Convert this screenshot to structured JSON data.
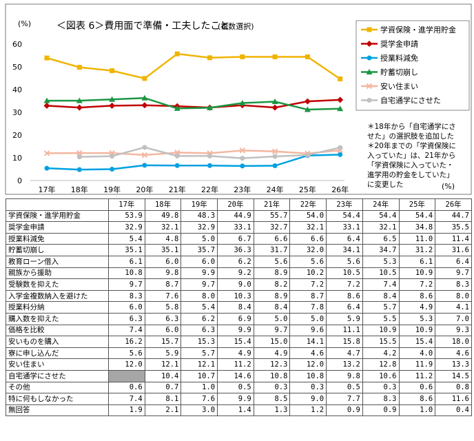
{
  "chart_data": {
    "type": "line",
    "title": "＜図表 6＞費用面で準備・工夫したこと",
    "subtitle": "(複数選択)",
    "y_unit": "(%)",
    "x_unit": "(%)",
    "ylim": [
      0,
      60
    ],
    "yticks": [
      0,
      10,
      20,
      30,
      40,
      50,
      60
    ],
    "categories": [
      "17年",
      "18年",
      "19年",
      "20年",
      "21年",
      "22年",
      "23年",
      "24年",
      "25年",
      "26年"
    ],
    "legend_position": "top-right",
    "series": [
      {
        "name": "学資保険・進学用貯金",
        "color": "#f0b400",
        "marker": "square",
        "values": [
          53.9,
          49.8,
          48.3,
          44.9,
          55.7,
          54.0,
          54.4,
          54.4,
          54.4,
          44.7
        ]
      },
      {
        "name": "奨学金申請",
        "color": "#c00000",
        "marker": "diamond",
        "values": [
          32.9,
          32.1,
          32.9,
          33.1,
          32.7,
          32.1,
          33.1,
          32.1,
          34.8,
          35.5
        ]
      },
      {
        "name": "授業料減免",
        "color": "#00a0e0",
        "marker": "circle",
        "values": [
          5.4,
          4.8,
          5.0,
          6.7,
          6.6,
          6.6,
          6.4,
          6.5,
          11.0,
          11.4
        ]
      },
      {
        "name": "貯蓄切崩し",
        "color": "#1a9641",
        "marker": "triangle",
        "values": [
          35.1,
          35.1,
          35.7,
          36.3,
          31.7,
          32.0,
          34.1,
          34.7,
          31.2,
          31.6
        ]
      },
      {
        "name": "安い住まい",
        "color": "#f4b6a0",
        "marker": "x",
        "values": [
          12.0,
          12.1,
          12.1,
          11.2,
          12.3,
          12.0,
          13.2,
          12.8,
          11.9,
          13.3
        ]
      },
      {
        "name": "自宅通学にさせた",
        "color": "#c0c0c0",
        "marker": "circle",
        "values": [
          null,
          10.4,
          10.7,
          14.6,
          10.8,
          10.8,
          9.8,
          10.6,
          11.2,
          14.5
        ]
      }
    ],
    "annotation": [
      "＊18年から「自宅通学にさ",
      "せた」の選択肢を追加した",
      "＊20年までの「学資保険に",
      "入っていた」は、21年から",
      "「学資保険に入っていた・",
      "進学用の貯金をしていた」",
      "に変更した"
    ]
  },
  "table": {
    "columns": [
      "17年",
      "18年",
      "19年",
      "20年",
      "21年",
      "22年",
      "23年",
      "24年",
      "25年",
      "26年"
    ],
    "rows": [
      {
        "label": "学資保険・進学用貯金",
        "values": [
          "53.9",
          "49.8",
          "48.3",
          "44.9",
          "55.7",
          "54.0",
          "54.4",
          "54.4",
          "54.4",
          "44.7"
        ]
      },
      {
        "label": "奨学金申請",
        "values": [
          "32.9",
          "32.1",
          "32.9",
          "33.1",
          "32.7",
          "32.1",
          "33.1",
          "32.1",
          "34.8",
          "35.5"
        ]
      },
      {
        "label": "授業料減免",
        "values": [
          "5.4",
          "4.8",
          "5.0",
          "6.7",
          "6.6",
          "6.6",
          "6.4",
          "6.5",
          "11.0",
          "11.4"
        ]
      },
      {
        "label": "貯蓄切崩し",
        "values": [
          "35.1",
          "35.1",
          "35.7",
          "36.3",
          "31.7",
          "32.0",
          "34.1",
          "34.7",
          "31.2",
          "31.6"
        ]
      },
      {
        "label": "教育ローン借入",
        "values": [
          "6.1",
          "6.0",
          "6.0",
          "6.2",
          "5.6",
          "5.6",
          "5.6",
          "5.3",
          "6.1",
          "6.4"
        ]
      },
      {
        "label": "親族から援助",
        "values": [
          "10.8",
          "9.8",
          "9.9",
          "9.2",
          "8.9",
          "10.2",
          "10.5",
          "10.5",
          "10.9",
          "9.7"
        ]
      },
      {
        "label": "受験数を抑えた",
        "values": [
          "9.7",
          "8.7",
          "9.7",
          "9.0",
          "8.2",
          "7.2",
          "7.2",
          "7.4",
          "7.2",
          "8.3"
        ]
      },
      {
        "label": "入学金複数納入を避けた",
        "values": [
          "8.3",
          "7.6",
          "8.0",
          "10.3",
          "8.9",
          "8.7",
          "8.6",
          "8.4",
          "8.6",
          "8.0"
        ]
      },
      {
        "label": "授業料分納",
        "values": [
          "6.0",
          "5.8",
          "5.4",
          "8.4",
          "8.4",
          "7.8",
          "6.4",
          "5.7",
          "4.9",
          "4.1"
        ]
      },
      {
        "label": "購入数を抑えた",
        "values": [
          "6.3",
          "6.3",
          "6.2",
          "6.9",
          "5.0",
          "5.0",
          "5.9",
          "5.5",
          "5.3",
          "7.0"
        ]
      },
      {
        "label": "価格を比較",
        "values": [
          "7.4",
          "6.0",
          "6.3",
          "9.9",
          "9.7",
          "9.6",
          "11.1",
          "10.9",
          "10.9",
          "9.3"
        ]
      },
      {
        "label": "安いものを購入",
        "values": [
          "16.2",
          "15.7",
          "15.3",
          "15.4",
          "15.0",
          "14.1",
          "15.8",
          "15.5",
          "15.4",
          "18.0"
        ]
      },
      {
        "label": "寮に申し込んだ",
        "values": [
          "5.6",
          "5.9",
          "5.7",
          "4.9",
          "4.9",
          "4.6",
          "4.7",
          "4.2",
          "4.0",
          "4.6"
        ]
      },
      {
        "label": "安い住まい",
        "values": [
          "12.0",
          "12.1",
          "12.1",
          "11.2",
          "12.3",
          "12.0",
          "13.2",
          "12.8",
          "11.9",
          "13.3"
        ]
      },
      {
        "label": "自宅通学にさせた",
        "values": [
          "",
          "10.4",
          "10.7",
          "14.6",
          "10.8",
          "10.8",
          "9.8",
          "10.6",
          "11.2",
          "14.5"
        ]
      },
      {
        "label": "その他",
        "values": [
          "0.6",
          "0.7",
          "1.0",
          "0.5",
          "0.3",
          "0.3",
          "0.5",
          "0.3",
          "0.6",
          "0.8"
        ]
      },
      {
        "label": "特に何もしなかった",
        "values": [
          "7.4",
          "8.1",
          "7.6",
          "9.9",
          "8.5",
          "9.0",
          "7.7",
          "8.3",
          "8.6",
          "11.6"
        ]
      },
      {
        "label": "無回答",
        "values": [
          "1.9",
          "2.1",
          "3.0",
          "1.4",
          "1.3",
          "1.2",
          "0.9",
          "0.9",
          "1.0",
          "0.4"
        ]
      }
    ]
  }
}
